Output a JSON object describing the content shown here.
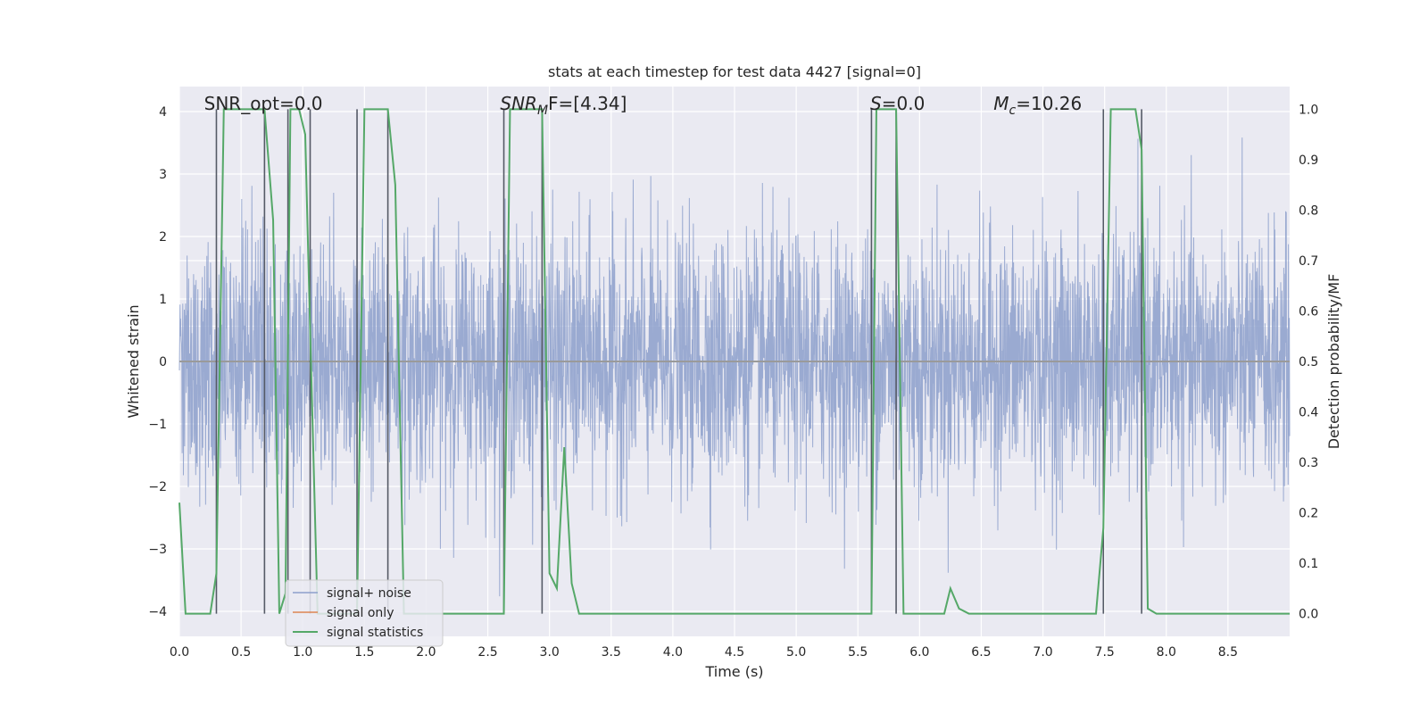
{
  "chart_data": {
    "type": "line",
    "title": "stats at each timestep for test data 4427 [signal=0]",
    "xlabel": "Time (s)",
    "ylabel": "Whitened strain",
    "y2label": "Detection probability/MF",
    "xlim": [
      0,
      9
    ],
    "ylim": [
      -4.4,
      4.4
    ],
    "y2lim": [
      -0.045,
      1.045
    ],
    "x_ticks": [
      0.0,
      0.5,
      1.0,
      1.5,
      2.0,
      2.5,
      3.0,
      3.5,
      4.0,
      4.5,
      5.0,
      5.5,
      6.0,
      6.5,
      7.0,
      7.5,
      8.0,
      8.5
    ],
    "x_tick_labels": [
      "0.0",
      "0.5",
      "1.0",
      "1.5",
      "2.0",
      "2.5",
      "3.0",
      "3.5",
      "4.0",
      "4.5",
      "5.0",
      "5.5",
      "6.0",
      "6.5",
      "7.0",
      "7.5",
      "8.0",
      "8.5"
    ],
    "y_ticks": [
      4,
      3,
      2,
      1,
      0,
      -1,
      -2,
      -3,
      -4
    ],
    "y_tick_labels": [
      "4",
      "3",
      "2",
      "1",
      "0",
      "−1",
      "−2",
      "−3",
      "−4"
    ],
    "y2_ticks": [
      1.0,
      0.9,
      0.8,
      0.7,
      0.6,
      0.5,
      0.4,
      0.3,
      0.2,
      0.1,
      0.0
    ],
    "y2_tick_labels": [
      "1.0",
      "0.9",
      "0.8",
      "0.7",
      "0.6",
      "0.5",
      "0.4",
      "0.3",
      "0.2",
      "0.1",
      "0.0"
    ],
    "y2_extra_gridlines": [
      0.3,
      0.57,
      0.7
    ],
    "grid": true,
    "legend_placement": "lower-left",
    "annotations": [
      {
        "id": "snr-opt",
        "text": "SNR_opt=0.0",
        "x": 0.2
      },
      {
        "id": "snr-mf",
        "base": "SNR",
        "sub": "M",
        "rest": "F=[4.34]",
        "x": 2.6
      },
      {
        "id": "s",
        "base": "S",
        "rest": "=0.0",
        "x": 5.6
      },
      {
        "id": "mc",
        "base": "M",
        "sub": "c",
        "rest": "=10.26",
        "x": 6.6
      }
    ],
    "detection_markers_x": [
      0.3,
      0.69,
      0.88,
      1.06,
      1.44,
      1.69,
      2.63,
      2.94,
      5.61,
      5.81,
      7.49,
      7.8
    ],
    "series": [
      {
        "name": "signal+ noise",
        "color": "#8c9fcb",
        "axis": "left",
        "description": "dense whitened noise, amplitude ~N(0,1), peaks to ~±4"
      },
      {
        "name": "signal only",
        "color": "#dd8452",
        "axis": "left",
        "x": [
          0,
          9
        ],
        "y": [
          0,
          0
        ]
      },
      {
        "name": "signal statistics",
        "color": "#55a868",
        "axis": "right",
        "x": [
          0.0,
          0.05,
          0.15,
          0.25,
          0.3,
          0.36,
          0.4,
          0.6,
          0.69,
          0.76,
          0.81,
          0.86,
          0.9,
          0.97,
          1.02,
          1.06,
          1.12,
          1.18,
          1.3,
          1.38,
          1.44,
          1.5,
          1.55,
          1.69,
          1.75,
          1.82,
          1.9,
          2.0,
          2.3,
          2.5,
          2.6,
          2.63,
          2.68,
          2.9,
          2.94,
          3.0,
          3.06,
          3.12,
          3.18,
          3.24,
          3.3,
          4.0,
          5.0,
          5.55,
          5.61,
          5.65,
          5.81,
          5.87,
          5.95,
          6.2,
          6.25,
          6.32,
          6.4,
          7.0,
          7.43,
          7.49,
          7.55,
          7.75,
          7.8,
          7.85,
          7.92,
          8.0,
          9.0
        ],
        "y": [
          0.22,
          0.0,
          0.0,
          0.0,
          0.08,
          1.0,
          1.0,
          1.0,
          1.0,
          0.78,
          0.0,
          0.04,
          1.0,
          1.0,
          0.95,
          0.56,
          0.0,
          0.0,
          0.0,
          0.0,
          0.0,
          1.0,
          1.0,
          1.0,
          0.85,
          0.0,
          0.0,
          0.0,
          0.0,
          0.0,
          0.0,
          0.0,
          1.0,
          1.0,
          1.0,
          0.08,
          0.05,
          0.33,
          0.06,
          0.0,
          0.0,
          0.0,
          0.0,
          0.0,
          0.0,
          1.0,
          1.0,
          0.0,
          0.0,
          0.0,
          0.05,
          0.01,
          0.0,
          0.0,
          0.0,
          0.17,
          1.0,
          1.0,
          0.92,
          0.01,
          0.0,
          0.0,
          0.0
        ]
      }
    ]
  }
}
